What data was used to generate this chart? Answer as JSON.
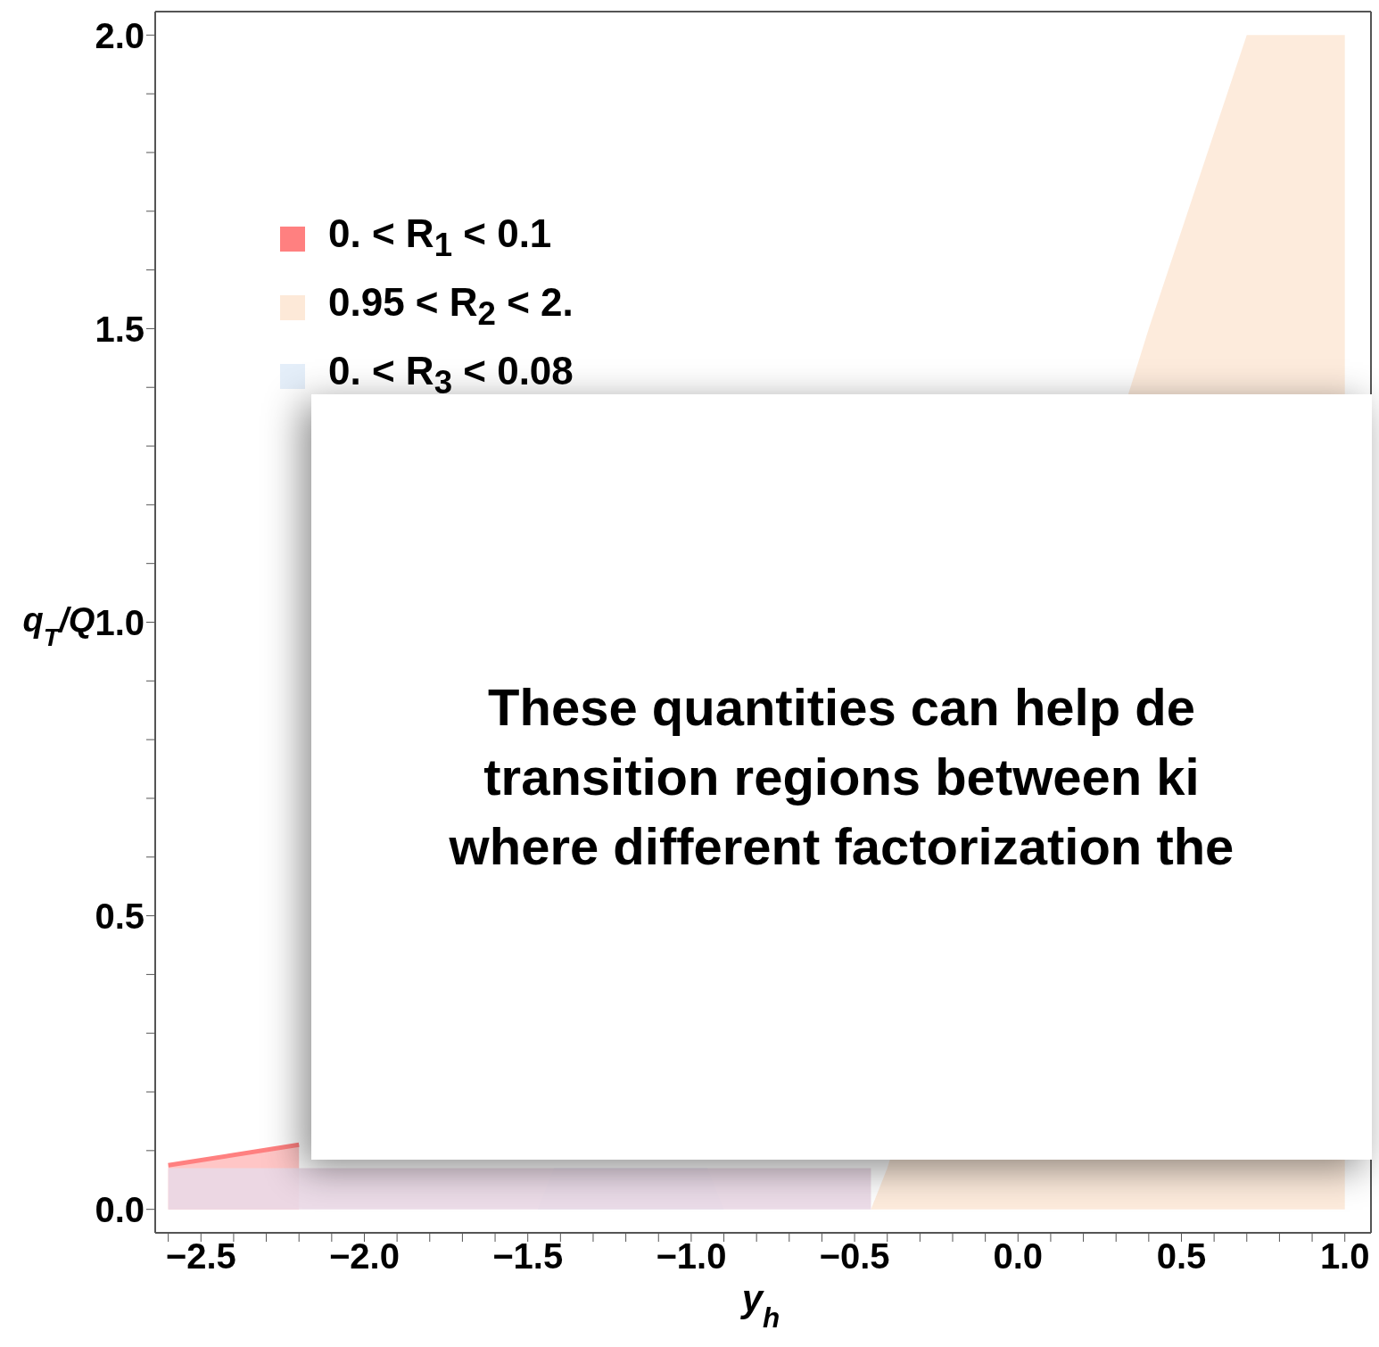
{
  "chart_data": {
    "type": "area",
    "xlabel": "y$_{h}$",
    "ylabel": "q$_{T}$/Q",
    "xlim": [
      -2.64,
      1.08
    ],
    "ylim": [
      -0.04,
      2.04
    ],
    "xticks": [
      {
        "value": -2.5,
        "label": "−2.5"
      },
      {
        "value": -2.0,
        "label": "−2.0"
      },
      {
        "value": -1.5,
        "label": "−1.5"
      },
      {
        "value": -1.0,
        "label": "−1.0"
      },
      {
        "value": -0.5,
        "label": "−0.5"
      },
      {
        "value": 0,
        "label": "0.0"
      },
      {
        "value": 0.5,
        "label": "0.5"
      },
      {
        "value": 1.0,
        "label": "1.0"
      }
    ],
    "yticks": [
      {
        "value": 0,
        "label": "0.0"
      },
      {
        "value": 0.5,
        "label": "0.5"
      },
      {
        "value": 1.0,
        "label": "1.0"
      },
      {
        "value": 1.5,
        "label": "1.5"
      },
      {
        "value": 2.0,
        "label": "2.0"
      }
    ],
    "legend": "top left",
    "series": [
      {
        "name": "0. < R$_{1}$ < 0.1",
        "color": "#ff8080",
        "x": [
          -2.6,
          -2.2
        ],
        "values": [
          0.075,
          0.11
        ]
      },
      {
        "name": "0.95 < R$_{2}$ < 2.",
        "color": "#fde9d8",
        "x": [
          -0.45,
          -0.4,
          0.4,
          0.7,
          1.0
        ],
        "values": [
          0,
          0.07,
          1.5,
          2.0,
          2.0
        ]
      },
      {
        "name": "0. < R$_{3}$ < 0.08",
        "color": "#e4eef9",
        "x": [
          -1.47,
          -1.42,
          -0.95,
          -0.9
        ],
        "values": [
          0,
          0.07,
          0.07,
          0
        ]
      },
      {
        "color": "#ead8e6",
        "x": [
          -2.6,
          -1.45,
          -0.9,
          -0.45
        ],
        "values": [
          0.07,
          0.07,
          0.07,
          0.07
        ]
      }
    ],
    "annotations": [
      "These quantities can help de",
      "transition regions between ki",
      "where different factorization the"
    ]
  }
}
